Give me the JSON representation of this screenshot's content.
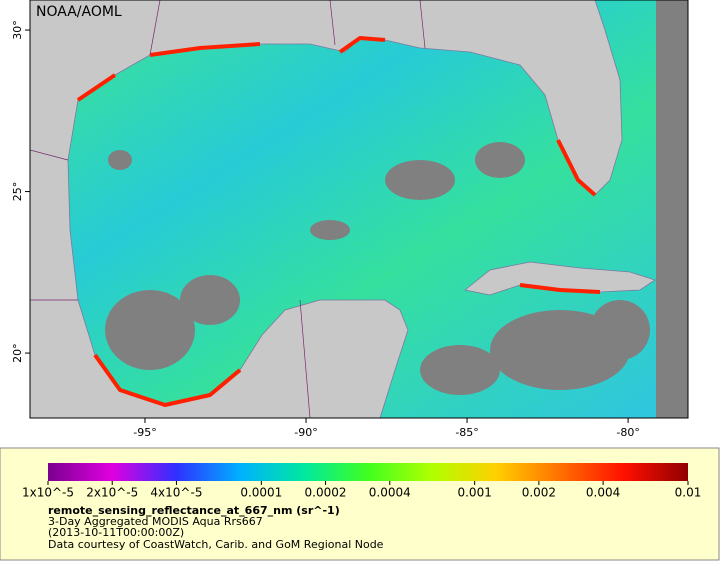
{
  "map": {
    "title": "NOAA/AOML",
    "xlim": [
      -98.57,
      -78.14
    ],
    "ylim": [
      17.99,
      30.93
    ],
    "xticks": [
      {
        "value": -95,
        "label": "-95°"
      },
      {
        "value": -90,
        "label": "-90°"
      },
      {
        "value": -85,
        "label": "-85°"
      },
      {
        "value": -80,
        "label": "-80°"
      }
    ],
    "yticks": [
      {
        "value": 20,
        "label": "20°"
      },
      {
        "value": 25,
        "label": "25°"
      },
      {
        "value": 30,
        "label": "30°"
      }
    ]
  },
  "legend": {
    "scale": "log",
    "lim": [
      1e-05,
      0.01
    ],
    "colors": [
      "#7a0090",
      "#e000e0",
      "#3030ff",
      "#00b0ff",
      "#00e8a0",
      "#40ff20",
      "#b0ff00",
      "#ffd000",
      "#ff7000",
      "#ff1000",
      "#900000"
    ],
    "ticks": [
      {
        "value": 1e-05,
        "label": "1x10^-5"
      },
      {
        "value": 2e-05,
        "label": "2x10^-5"
      },
      {
        "value": 4e-05,
        "label": "4x10^-5"
      },
      0.0001,
      0.0002,
      0.0004,
      0.001,
      0.002,
      0.004,
      0.01
    ],
    "variable": "remote_sensing_reflectance_at_667_nm (sr^-1)",
    "description": "3-Day Aggregated MODIS Aqua Rrs667",
    "time": "(2013-10-11T00:00:00Z)",
    "credit": "Data courtesy of CoastWatch, Carib. and GoM Regional Node"
  }
}
